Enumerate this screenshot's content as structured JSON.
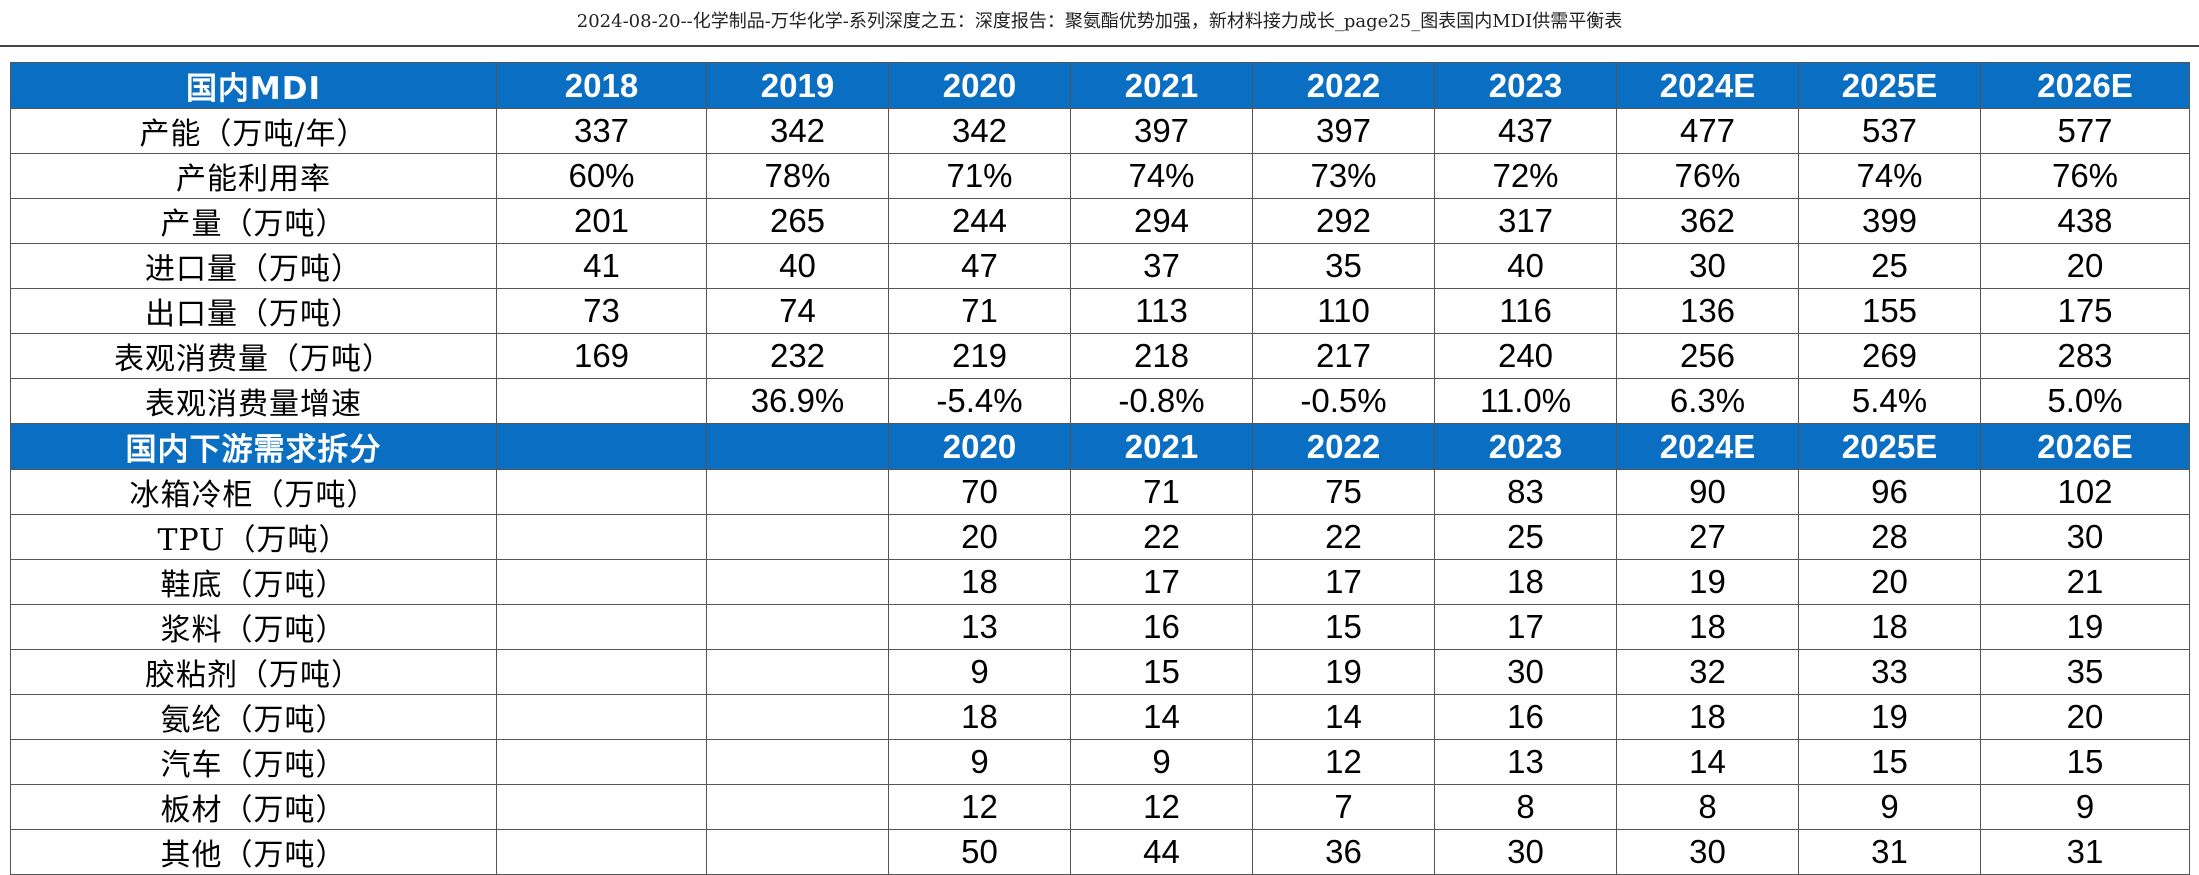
{
  "document": {
    "title": "2024-08-20--化学制品-万华化学-系列深度之五：深度报告：聚氨酯优势加强，新材料接力成长_page25_图表国内MDI供需平衡表"
  },
  "supply": {
    "header": [
      "国内MDI",
      "2018",
      "2019",
      "2020",
      "2021",
      "2022",
      "2023",
      "2024E",
      "2025E",
      "2026E"
    ],
    "rows": [
      [
        "产能（万吨/年）",
        "337",
        "342",
        "342",
        "397",
        "397",
        "437",
        "477",
        "537",
        "577"
      ],
      [
        "产能利用率",
        "60%",
        "78%",
        "71%",
        "74%",
        "73%",
        "72%",
        "76%",
        "74%",
        "76%"
      ],
      [
        "产量（万吨）",
        "201",
        "265",
        "244",
        "294",
        "292",
        "317",
        "362",
        "399",
        "438"
      ],
      [
        "进口量（万吨）",
        "41",
        "40",
        "47",
        "37",
        "35",
        "40",
        "30",
        "25",
        "20"
      ],
      [
        "出口量（万吨）",
        "73",
        "74",
        "71",
        "113",
        "110",
        "116",
        "136",
        "155",
        "175"
      ],
      [
        "表观消费量（万吨）",
        "169",
        "232",
        "219",
        "218",
        "217",
        "240",
        "256",
        "269",
        "283"
      ],
      [
        "表观消费量增速",
        "",
        "36.9%",
        "-5.4%",
        "-0.8%",
        "-0.5%",
        "11.0%",
        "6.3%",
        "5.4%",
        "5.0%"
      ]
    ]
  },
  "demand": {
    "header": [
      "国内下游需求拆分",
      "",
      "",
      "2020",
      "2021",
      "2022",
      "2023",
      "2024E",
      "2025E",
      "2026E"
    ],
    "rows": [
      [
        "冰箱冷柜（万吨）",
        "",
        "",
        "70",
        "71",
        "75",
        "83",
        "90",
        "96",
        "102"
      ],
      [
        "TPU（万吨）",
        "",
        "",
        "20",
        "22",
        "22",
        "25",
        "27",
        "28",
        "30"
      ],
      [
        "鞋底（万吨）",
        "",
        "",
        "18",
        "17",
        "17",
        "18",
        "19",
        "20",
        "21"
      ],
      [
        "浆料（万吨）",
        "",
        "",
        "13",
        "16",
        "15",
        "17",
        "18",
        "18",
        "19"
      ],
      [
        "胶粘剂（万吨）",
        "",
        "",
        "9",
        "15",
        "19",
        "30",
        "32",
        "33",
        "35"
      ],
      [
        "氨纶（万吨）",
        "",
        "",
        "18",
        "14",
        "14",
        "16",
        "18",
        "19",
        "20"
      ],
      [
        "汽车（万吨）",
        "",
        "",
        "9",
        "9",
        "12",
        "13",
        "14",
        "15",
        "15"
      ],
      [
        "板材（万吨）",
        "",
        "",
        "12",
        "12",
        "7",
        "8",
        "8",
        "9",
        "9"
      ],
      [
        "其他（万吨）",
        "",
        "",
        "50",
        "44",
        "36",
        "30",
        "30",
        "31",
        "31"
      ]
    ]
  },
  "colors": {
    "header_bg": "#0a6fc2",
    "header_text": "#ffffff",
    "border": "#555555"
  }
}
